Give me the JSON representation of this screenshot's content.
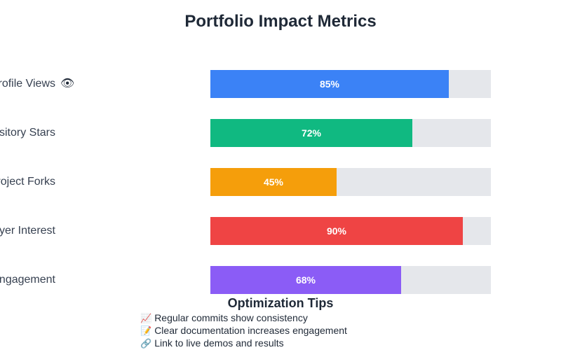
{
  "title": "Portfolio Impact Metrics",
  "metrics": [
    {
      "label": "Profile Views",
      "value": 85,
      "text": "85%",
      "color": "#3b82f6"
    },
    {
      "label": "Repository Stars",
      "value": 72,
      "text": "72%",
      "color": "#10b981"
    },
    {
      "label": "Project Forks",
      "value": 45,
      "text": "45%",
      "color": "#f59e0b"
    },
    {
      "label": "Employer Interest",
      "value": 90,
      "text": "90%",
      "color": "#ef4444"
    },
    {
      "label": "Community Engagement",
      "value": 68,
      "text": "68%",
      "color": "#8b5cf6"
    }
  ],
  "eye_icon": "eye-icon",
  "tips": {
    "title": "Optimization Tips",
    "items": [
      {
        "icon": "📈",
        "icon_name": "chart-increasing-icon",
        "text": "Regular commits show consistency"
      },
      {
        "icon": "📝",
        "icon_name": "memo-icon",
        "text": "Clear documentation increases engagement"
      },
      {
        "icon": "🔗",
        "icon_name": "link-icon",
        "text": "Link to live demos and results"
      }
    ]
  }
}
